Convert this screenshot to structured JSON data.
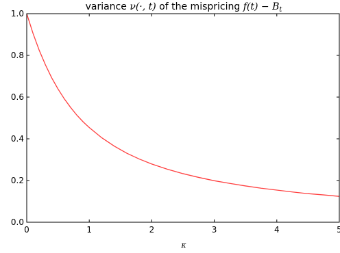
{
  "chart_data": {
    "type": "line",
    "title": {
      "prefix": "variance ",
      "var": "ν(·, t)",
      "middle": " of the mispricing ",
      "expr": "f(t) − B",
      "sub": "t"
    },
    "xlabel": "κ",
    "ylabel": "",
    "xlim": [
      0,
      5
    ],
    "ylim": [
      0.0,
      1.0
    ],
    "xticks": [
      0,
      1,
      2,
      3,
      4,
      5
    ],
    "xtick_labels": [
      "0",
      "1",
      "2",
      "3",
      "4",
      "5"
    ],
    "yticks": [
      0.0,
      0.2,
      0.4,
      0.6,
      0.8,
      1.0
    ],
    "ytick_labels": [
      "0.0",
      "0.2",
      "0.4",
      "0.6",
      "0.8",
      "1.0"
    ],
    "grid": false,
    "series": [
      {
        "color": "#ff4040",
        "x": [
          0,
          0.1,
          0.2,
          0.3,
          0.4,
          0.5,
          0.6,
          0.7,
          0.8,
          0.9,
          1.0,
          1.2,
          1.4,
          1.6,
          1.8,
          2.0,
          2.25,
          2.5,
          2.75,
          3.0,
          3.25,
          3.5,
          3.75,
          4.0,
          4.25,
          4.5,
          4.75,
          5.0
        ],
        "y": [
          1.0,
          0.906,
          0.824,
          0.754,
          0.692,
          0.639,
          0.592,
          0.551,
          0.514,
          0.482,
          0.454,
          0.405,
          0.365,
          0.331,
          0.303,
          0.279,
          0.254,
          0.233,
          0.215,
          0.199,
          0.186,
          0.174,
          0.163,
          0.154,
          0.145,
          0.137,
          0.131,
          0.124
        ]
      }
    ]
  }
}
